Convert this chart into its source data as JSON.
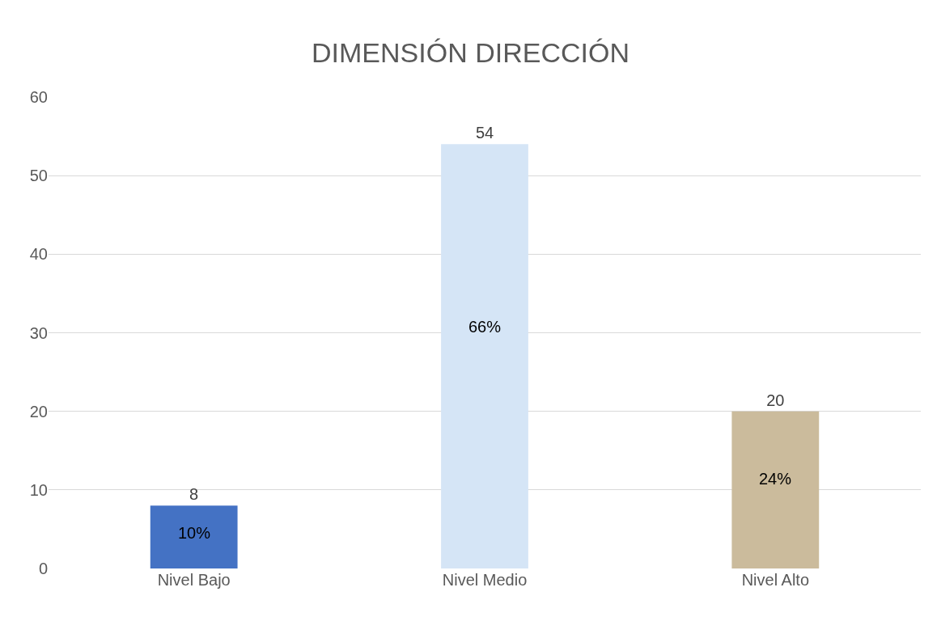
{
  "chart_data": {
    "type": "bar",
    "title": "DIMENSIÓN DIRECCIÓN",
    "categories": [
      "Nivel Bajo",
      "Nivel Medio",
      "Nivel Alto"
    ],
    "values": [
      8,
      54,
      20
    ],
    "colors": [
      "#4472c4",
      "#d5e5f6",
      "#cbbb9c"
    ],
    "data_labels": true,
    "annotations": [
      "10%",
      "66%",
      "24%"
    ],
    "ylim": [
      0,
      60
    ],
    "yticks": [
      0,
      10,
      20,
      30,
      40,
      50,
      60
    ],
    "grid": "y",
    "legend": false
  }
}
